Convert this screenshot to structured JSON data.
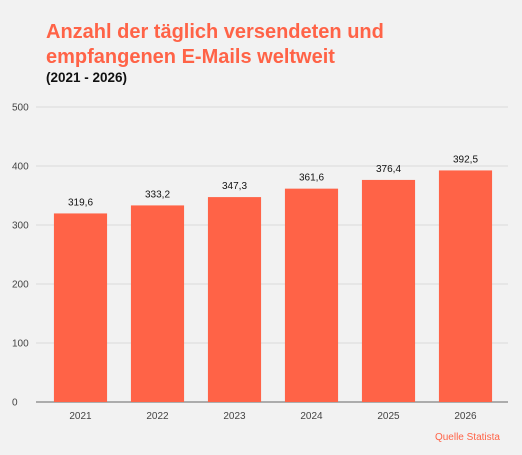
{
  "chart_data": {
    "type": "bar",
    "title": "Anzahl der täglich versendeten und empfangenen E-Mails weltweit",
    "subtitle": "(2021 - 2026)",
    "categories": [
      "2021",
      "2022",
      "2023",
      "2024",
      "2025",
      "2026"
    ],
    "values": [
      319.6,
      333.2,
      347.3,
      361.6,
      376.4,
      392.5
    ],
    "value_labels": [
      "319,6",
      "333,2",
      "347,3",
      "361,6",
      "376,4",
      "392,5"
    ],
    "y_ticks": [
      0,
      100,
      200,
      300,
      400,
      500
    ],
    "ylim": [
      0,
      500
    ],
    "xlabel": "",
    "ylabel": "",
    "grid": true,
    "bar_color": "#ff6347",
    "grid_color": "#d9d9d9"
  },
  "footer": {
    "source": "Quelle Statista"
  }
}
